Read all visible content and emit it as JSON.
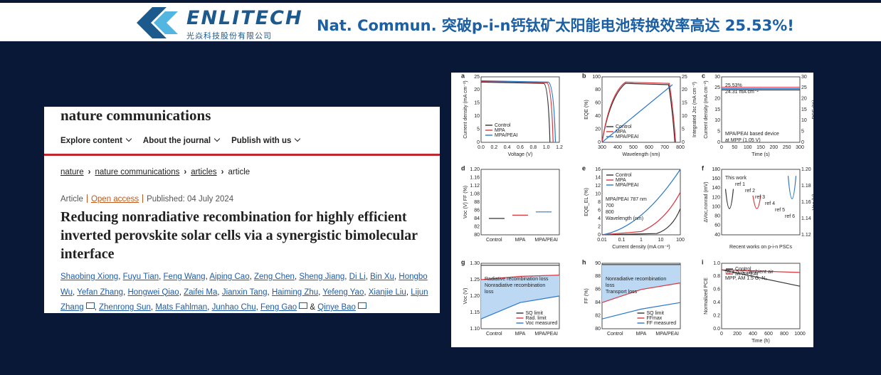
{
  "header": {
    "brand": "ENLITECH",
    "brand_sub": "光焱科技股份有限公司",
    "title": "Nat. Commun. 突破p-i-n钙钛矿太阳能电池转换效率高达 25.53%!"
  },
  "article": {
    "journal": "nature communications",
    "nav": [
      "Explore content",
      "About the journal",
      "Publish with us"
    ],
    "breadcrumb": [
      "nature",
      "nature communications",
      "articles",
      "article"
    ],
    "type": "Article",
    "open_access": "Open access",
    "published": "Published: 04 July 2024",
    "title": "Reducing nonradiative recombination for highly efficient inverted perovskite solar cells via a synergistic bimolecular interface",
    "author_separator": ",",
    "and_sign": "&",
    "authors": [
      {
        "name": "Shaobing Xiong"
      },
      {
        "name": "Fuyu Tian"
      },
      {
        "name": "Feng Wang"
      },
      {
        "name": "Aiping Cao"
      },
      {
        "name": "Zeng Chen"
      },
      {
        "name": "Sheng Jiang"
      },
      {
        "name": "Di Li"
      },
      {
        "name": "Bin Xu"
      },
      {
        "name": "Hongbo Wu"
      },
      {
        "name": "Yefan Zhang"
      },
      {
        "name": "Hongwei Qiao"
      },
      {
        "name": "Zaifei Ma"
      },
      {
        "name": "Jianxin Tang"
      },
      {
        "name": "Haiming Zhu"
      },
      {
        "name": "Yefeng Yao"
      },
      {
        "name": "Xianjie Liu"
      },
      {
        "name": "Lijun Zhang",
        "email": true
      },
      {
        "name": "Zhenrong Sun"
      },
      {
        "name": "Mats Fahlman"
      },
      {
        "name": "Junhao Chu"
      },
      {
        "name": "Feng Gao",
        "email": true
      },
      {
        "name": "Qinye Bao",
        "email": true
      }
    ]
  },
  "figure": {
    "panels": [
      {
        "letter": "a",
        "xlabel": "Voltage (V)",
        "ylabel": "Current density (mA cm⁻²)",
        "xticks": [
          "0.0",
          "0.2",
          "0.4",
          "0.6",
          "0.8",
          "1.0",
          "1.2"
        ],
        "yticks": [
          "0",
          "5",
          "10",
          "15",
          "20",
          "25"
        ],
        "legend": [
          "Control",
          "MPA",
          "MPA/PEAI"
        ]
      },
      {
        "letter": "b",
        "xlabel": "Wavelength (nm)",
        "ylabel": "EQE (%)",
        "y2label": "Integrated Jsc (mA cm⁻²)",
        "xticks": [
          "300",
          "400",
          "500",
          "600",
          "700",
          "800"
        ],
        "yticks": [
          "0",
          "20",
          "40",
          "60",
          "80",
          "100"
        ],
        "y2ticks": [
          "0",
          "5",
          "10",
          "15",
          "20",
          "25"
        ],
        "legend": [
          "Control",
          "MPA",
          "MPA/PEAI"
        ]
      },
      {
        "letter": "c",
        "xlabel": "Time (s)",
        "ylabel": "Current density (mA cm⁻²)",
        "y2label": "PCE (%)",
        "xticks": [
          "0",
          "50",
          "100",
          "150",
          "200",
          "250",
          "300"
        ],
        "yticks": [
          "0",
          "5",
          "10",
          "15",
          "20",
          "25",
          "30"
        ],
        "y2ticks": [
          "0",
          "5",
          "10",
          "15",
          "20",
          "25",
          "30"
        ],
        "notes": [
          "25.53%",
          "24.31 mA cm⁻²",
          "MPA/PEAI based device",
          "at MPP (1.05 V)"
        ]
      },
      {
        "letter": "d",
        "ylabel": "Voc (V)   FF (%)",
        "xticks": [
          "Control",
          "MPA",
          "MPA/PEAI"
        ],
        "yticks": [
          "80",
          "82",
          "84",
          "86",
          "88",
          "1.08",
          "1.12",
          "1.16",
          "1.20"
        ]
      },
      {
        "letter": "e",
        "xlabel": "Current density (mA cm⁻²)",
        "ylabel": "EQE_EL (%)",
        "xticks": [
          "0.01",
          "0.1",
          "1",
          "10",
          "100"
        ],
        "yticks": [
          "0",
          "2",
          "4",
          "6",
          "8",
          "10",
          "12",
          "14",
          "16"
        ],
        "legend": [
          "Control",
          "MPA",
          "MPA/PEAI"
        ],
        "notes": [
          "MPA/PEAI 787 nm",
          "700",
          "800",
          "Wavelength (nm)"
        ]
      },
      {
        "letter": "f",
        "xlabel": "Recent works on p-i-n PSCs",
        "ylabel": "ΔVoc,nonrad (mV)",
        "y2label": "Voc (V)",
        "yticks": [
          "40",
          "60",
          "80",
          "100",
          "120",
          "140",
          "160",
          "180"
        ],
        "y2ticks": [
          "1.12",
          "1.14",
          "1.16",
          "1.18",
          "1.20"
        ],
        "notes": [
          "This work",
          "ref 1",
          "ref 2",
          "ref 3",
          "ref 4",
          "ref 5",
          "ref 6"
        ]
      },
      {
        "letter": "g",
        "ylabel": "Voc (V)",
        "xticks": [
          "Control",
          "MPA",
          "MPA/PEAI"
        ],
        "yticks": [
          "1.10",
          "1.15",
          "1.20",
          "1.25",
          "1.30"
        ],
        "legend": [
          "SQ limit",
          "Rad. limit",
          "Voc measured"
        ],
        "notes": [
          "Radiative recombination loss",
          "Nonradiative recombination",
          "loss"
        ]
      },
      {
        "letter": "h",
        "ylabel": "FF (%)",
        "xticks": [
          "Control",
          "MPA",
          "MPA/PEAI"
        ],
        "yticks": [
          "80",
          "82",
          "84",
          "86",
          "88",
          "90"
        ],
        "legend": [
          "SQ limit",
          "FFmax",
          "FF measured"
        ],
        "notes": [
          "Nonradiative recombination",
          "loss",
          "Transport loss"
        ]
      },
      {
        "letter": "i",
        "xlabel": "Time (h)",
        "ylabel": "Normalized PCE",
        "xticks": [
          "0",
          "200",
          "400",
          "600",
          "800",
          "1000"
        ],
        "yticks": [
          "0.0",
          "0.2",
          "0.4",
          "0.6",
          "0.8",
          "1.0"
        ],
        "legend": [
          "Control",
          "MPA/PEAI"
        ],
        "notes": [
          "55 ± 5 °C, ambient air",
          "MPP, AM 1.5 G, N₂"
        ]
      }
    ]
  }
}
